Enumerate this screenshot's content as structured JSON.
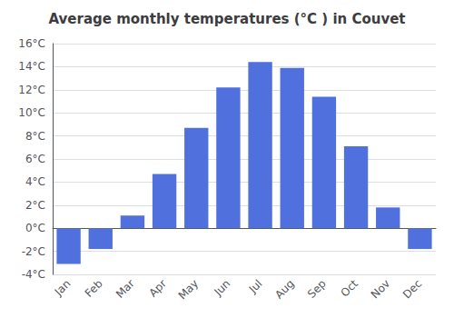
{
  "chart_data": {
    "type": "bar",
    "title": "Average monthly temperatures (°C ) in Couvet",
    "categories": [
      "Jan",
      "Feb",
      "Mar",
      "Apr",
      "May",
      "Jun",
      "Jul",
      "Aug",
      "Sep",
      "Oct",
      "Nov",
      "Dec"
    ],
    "values": [
      -3.1,
      -1.8,
      1.1,
      4.7,
      8.7,
      12.2,
      14.4,
      13.9,
      11.4,
      7.1,
      1.8,
      -1.8
    ],
    "ylim": [
      -4,
      16
    ],
    "yticks": [
      {
        "value": -4,
        "label": "-4°C"
      },
      {
        "value": -2,
        "label": "-2°C"
      },
      {
        "value": 0,
        "label": "0°C"
      },
      {
        "value": 2,
        "label": "2°C"
      },
      {
        "value": 4,
        "label": "4°C"
      },
      {
        "value": 6,
        "label": "6°C"
      },
      {
        "value": 8,
        "label": "8°C"
      },
      {
        "value": 10,
        "label": "10°C"
      },
      {
        "value": 12,
        "label": "12°C"
      },
      {
        "value": 14,
        "label": "14°C"
      },
      {
        "value": 16,
        "label": "16°C"
      }
    ],
    "grid": true
  }
}
